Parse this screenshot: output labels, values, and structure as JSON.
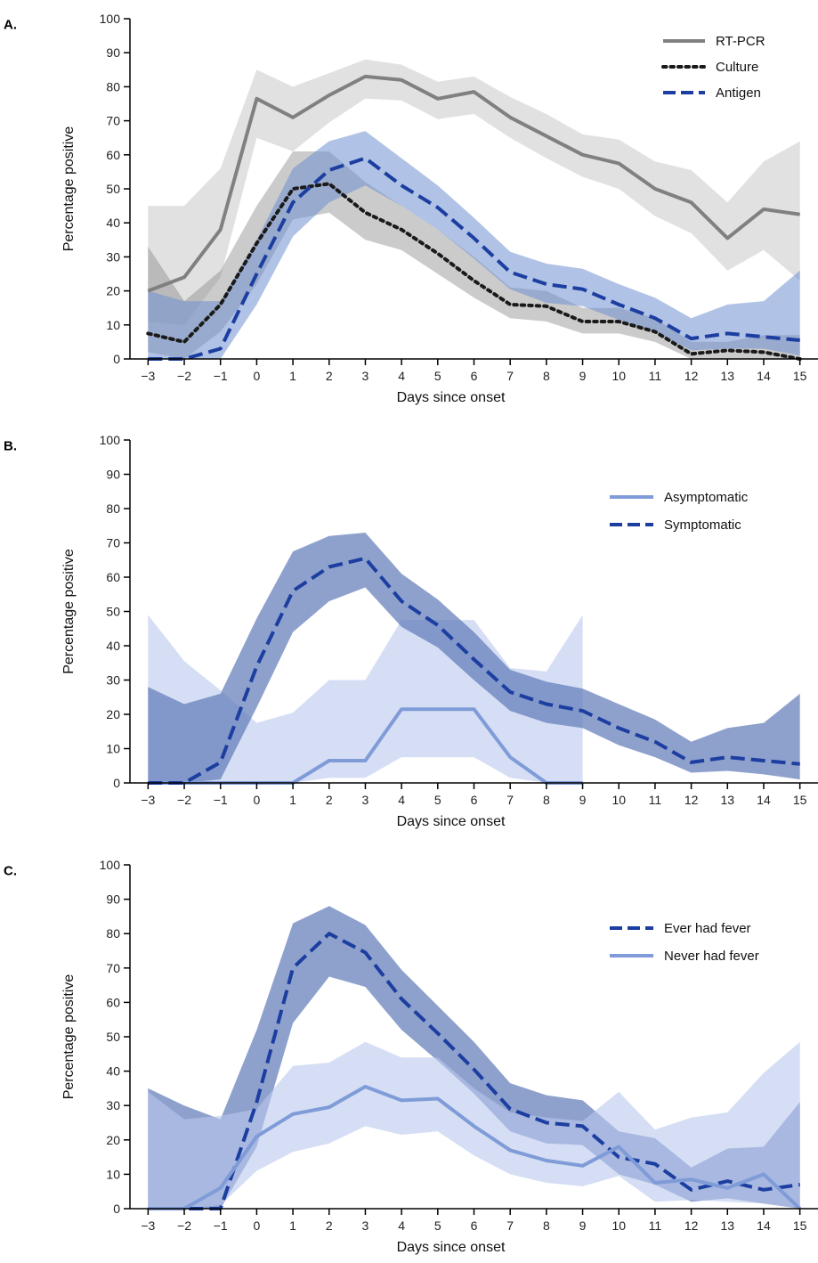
{
  "chart_data": [
    {
      "panel": "A.",
      "type": "line",
      "xlabel": "Days since onset",
      "ylabel": "Percentage positive",
      "x": [
        -3,
        -2,
        -1,
        0,
        1,
        2,
        3,
        4,
        5,
        6,
        7,
        8,
        9,
        10,
        11,
        12,
        13,
        14,
        15
      ],
      "x_tick_labels": [
        "−3",
        "−2",
        "−1",
        "0",
        "1",
        "2",
        "3",
        "4",
        "5",
        "6",
        "7",
        "8",
        "9",
        "10",
        "11",
        "12",
        "13",
        "14",
        "15"
      ],
      "ylim": [
        0,
        100
      ],
      "y_ticks": [
        0,
        10,
        20,
        30,
        40,
        50,
        60,
        70,
        80,
        90,
        100
      ],
      "grid": false,
      "legend_position": "top-right",
      "series": [
        {
          "name": "RT-PCR",
          "style": "solid",
          "color": "#808080",
          "band_color": "#bdbdbd",
          "band_opacity": 0.45,
          "values": [
            20,
            24,
            38,
            76.5,
            71,
            77.5,
            83,
            82,
            76.5,
            78.5,
            71,
            65.5,
            60,
            57.5,
            50,
            46,
            35.5,
            44,
            42.5
          ],
          "lower": [
            11,
            10,
            24,
            65,
            61,
            69.5,
            76.5,
            76,
            70.5,
            72,
            65,
            59,
            53.5,
            50,
            42,
            37,
            26,
            32,
            23
          ],
          "upper": [
            45,
            45,
            56,
            85,
            80,
            84,
            88,
            86.5,
            81.5,
            83,
            77,
            72,
            66,
            64.5,
            58,
            55.5,
            46,
            58,
            64
          ]
        },
        {
          "name": "Culture",
          "style": "dotted",
          "color": "#1a1a1a",
          "band_color": "#8c8c8c",
          "band_opacity": 0.45,
          "values": [
            7.5,
            5,
            16,
            34,
            50,
            51.5,
            43,
            38,
            31,
            23,
            16,
            15.5,
            11,
            11,
            8,
            1.5,
            2.5,
            2,
            0
          ],
          "lower": [
            2,
            0,
            8,
            22,
            41,
            43,
            35,
            32,
            25,
            18,
            12,
            11,
            7.5,
            7.5,
            5,
            0,
            0,
            0,
            0
          ],
          "upper": [
            33,
            17,
            26,
            45,
            61,
            61,
            52,
            45,
            38,
            30,
            21,
            20,
            15,
            15,
            12,
            5,
            5,
            7,
            7
          ]
        },
        {
          "name": "Antigen",
          "style": "dashed",
          "color": "#1c3ea0",
          "band_color": "#6f8fd0",
          "band_opacity": 0.55,
          "values": [
            0,
            0,
            3,
            25,
            46,
            55.5,
            59,
            51,
            44.5,
            35.5,
            25.5,
            22,
            20.5,
            16,
            12,
            6,
            7.5,
            6.5,
            5.5
          ],
          "lower": [
            0,
            0,
            0,
            16,
            36,
            46,
            51,
            45,
            38,
            29.5,
            20.5,
            16.5,
            15.5,
            11.5,
            8,
            2.5,
            3,
            3,
            1
          ],
          "upper": [
            20,
            17,
            17,
            35,
            56,
            64,
            67,
            59,
            51,
            41.5,
            31.5,
            28,
            26.5,
            22,
            18,
            12,
            16,
            17,
            26
          ]
        }
      ]
    },
    {
      "panel": "B.",
      "type": "line",
      "xlabel": "Days since onset",
      "ylabel": "Percentage positive",
      "x": [
        -3,
        -2,
        -1,
        0,
        1,
        2,
        3,
        4,
        5,
        6,
        7,
        8,
        9,
        10,
        11,
        12,
        13,
        14,
        15
      ],
      "x_tick_labels": [
        "−3",
        "−2",
        "−1",
        "0",
        "1",
        "2",
        "3",
        "4",
        "5",
        "6",
        "7",
        "8",
        "9",
        "10",
        "11",
        "12",
        "13",
        "14",
        "15"
      ],
      "ylim": [
        0,
        100
      ],
      "y_ticks": [
        0,
        10,
        20,
        30,
        40,
        50,
        60,
        70,
        80,
        90,
        100
      ],
      "grid": false,
      "legend_position": "top-right",
      "series": [
        {
          "name": "Asymptomatic",
          "style": "solid",
          "color": "#7f9bd8",
          "band_color": "#b9c8ec",
          "band_opacity": 0.6,
          "x": [
            -3,
            -2,
            -1,
            0,
            1,
            2,
            3,
            4,
            5,
            6,
            7,
            8,
            9
          ],
          "values": [
            0,
            0,
            0,
            0,
            0,
            6.5,
            6.5,
            21.5,
            21.5,
            21.5,
            7.5,
            0,
            0
          ],
          "lower": [
            0,
            0,
            0,
            0,
            0,
            1.5,
            1.5,
            7.5,
            7.5,
            7.5,
            1.5,
            0,
            0
          ],
          "upper": [
            49,
            35.5,
            27,
            17.5,
            20.5,
            30,
            30,
            47.5,
            47.5,
            47.5,
            33.5,
            32.5,
            49
          ]
        },
        {
          "name": "Symptomatic",
          "style": "dashed",
          "color": "#1c3ea0",
          "band_color": "#5e79b8",
          "band_opacity": 0.7,
          "values": [
            0,
            0,
            6,
            34,
            56,
            63,
            65.5,
            53,
            46,
            36,
            26.5,
            23,
            21,
            16,
            12,
            6,
            7.5,
            6.5,
            5.5
          ],
          "lower": [
            0,
            0,
            1,
            22,
            44,
            53,
            57,
            45.5,
            39.5,
            30,
            21,
            17.5,
            16,
            11,
            7.5,
            3,
            3.5,
            2.5,
            1
          ],
          "upper": [
            28,
            23,
            26,
            48,
            67.5,
            72,
            73,
            61,
            53.5,
            44,
            33,
            29.5,
            27.5,
            23,
            18.5,
            12,
            16,
            17.5,
            26
          ]
        }
      ]
    },
    {
      "panel": "C.",
      "type": "line",
      "xlabel": "Days since onset",
      "ylabel": "Percentage positive",
      "x": [
        -3,
        -2,
        -1,
        0,
        1,
        2,
        3,
        4,
        5,
        6,
        7,
        8,
        9,
        10,
        11,
        12,
        13,
        14,
        15
      ],
      "x_tick_labels": [
        "−3",
        "−2",
        "−1",
        "0",
        "1",
        "2",
        "3",
        "4",
        "5",
        "6",
        "7",
        "8",
        "9",
        "10",
        "11",
        "12",
        "13",
        "14",
        "15"
      ],
      "ylim": [
        0,
        100
      ],
      "y_ticks": [
        0,
        10,
        20,
        30,
        40,
        50,
        60,
        70,
        80,
        90,
        100
      ],
      "grid": false,
      "legend_position": "top-right",
      "series": [
        {
          "name": "Ever had fever",
          "style": "dashed",
          "color": "#1c3ea0",
          "band_color": "#5e79b8",
          "band_opacity": 0.7,
          "values": [
            0,
            0,
            0,
            31,
            70,
            80,
            74.5,
            61,
            51,
            40.5,
            29,
            25,
            24,
            15,
            13,
            5.5,
            8,
            5.5,
            7
          ],
          "lower": [
            0,
            0,
            0,
            18,
            54,
            67.5,
            64.5,
            52,
            43,
            33.5,
            22.5,
            19,
            18.5,
            10,
            7,
            2,
            3,
            1.5,
            0
          ],
          "upper": [
            35,
            30,
            26,
            52,
            83,
            88,
            82.5,
            69.5,
            59,
            48.5,
            36.5,
            33,
            31.5,
            22.5,
            20.5,
            12,
            17.5,
            18,
            31
          ]
        },
        {
          "name": "Never had fever",
          "style": "solid",
          "color": "#7f9bd8",
          "band_color": "#b9c8ec",
          "band_opacity": 0.6,
          "values": [
            0,
            0,
            6,
            21,
            27.5,
            29.5,
            35.5,
            31.5,
            32,
            24,
            17,
            14,
            12.5,
            18,
            7.5,
            8.5,
            6,
            10,
            0
          ],
          "lower": [
            0,
            0,
            1,
            11,
            16.5,
            19,
            24,
            21.5,
            22.5,
            15.5,
            10,
            7.5,
            6.5,
            9.5,
            2,
            2.5,
            2,
            1.5,
            0
          ],
          "upper": [
            34,
            26,
            27,
            29,
            41.5,
            42.5,
            48.5,
            44,
            44,
            35,
            28,
            26.5,
            25.5,
            34,
            23,
            26.5,
            28,
            39.5,
            48.5
          ]
        }
      ]
    }
  ]
}
